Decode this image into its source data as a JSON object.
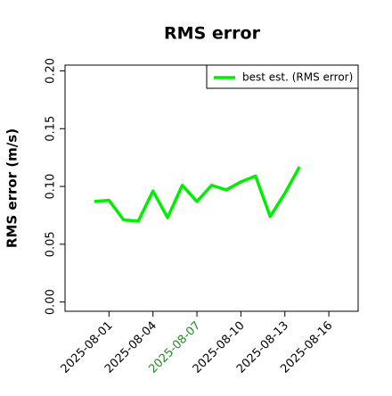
{
  "chart_data": {
    "type": "line",
    "title": "RMS error",
    "y_label": "RMS error (m/s)",
    "x": [
      "2025-07-31",
      "2025-08-01",
      "2025-08-02",
      "2025-08-03",
      "2025-08-04",
      "2025-08-05",
      "2025-08-06",
      "2025-08-07",
      "2025-08-08",
      "2025-08-09",
      "2025-08-10",
      "2025-08-11",
      "2025-08-12",
      "2025-08-13",
      "2025-08-14"
    ],
    "series": [
      {
        "name": "best est. (RMS error)",
        "color": "#00ee00",
        "values": [
          0.087,
          0.088,
          0.071,
          0.07,
          0.096,
          0.073,
          0.101,
          0.087,
          0.101,
          0.097,
          0.104,
          0.109,
          0.074,
          0.094,
          0.117
        ]
      }
    ],
    "xlim": [
      "2025-07-29",
      "2025-08-18"
    ],
    "xticks": [
      "2025-08-01",
      "2025-08-04",
      "2025-08-07",
      "2025-08-10",
      "2025-08-13",
      "2025-08-16"
    ],
    "xtick_label_colors": [
      "#000000",
      "#000000",
      "#228b22",
      "#000000",
      "#000000",
      "#000000"
    ],
    "ylim": [
      -0.008,
      0.205
    ],
    "yticks": [
      {
        "value": 0,
        "label": "0.00"
      },
      {
        "value": 0.05,
        "label": "0.05"
      },
      {
        "value": 0.1,
        "label": "0.10"
      },
      {
        "value": 0.15,
        "label": "0.15"
      },
      {
        "value": 0.2,
        "label": "0.20"
      }
    ],
    "legend": "upper right",
    "grid": false
  }
}
